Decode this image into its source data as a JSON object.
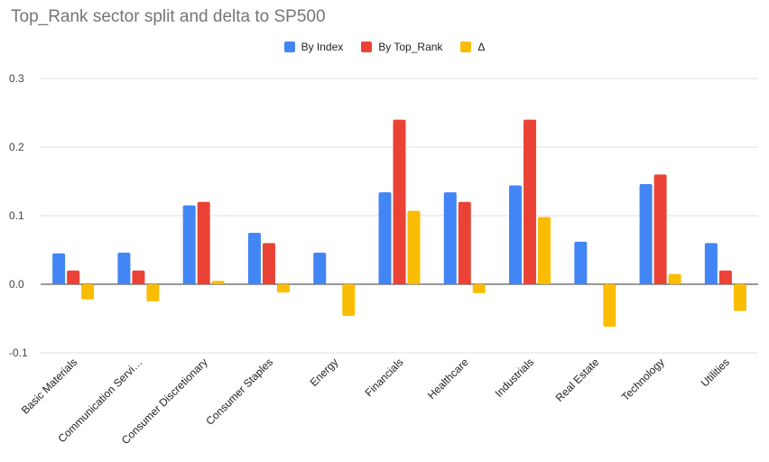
{
  "chart_data": {
    "type": "bar",
    "title": "Top_Rank sector split and delta to SP500",
    "xlabel": "",
    "ylabel": "",
    "ylim": [
      -0.1,
      0.3
    ],
    "yticks": [
      "0.3",
      "0.2",
      "0.1",
      "0.0",
      "-0.1"
    ],
    "ytick_values": [
      0.3,
      0.2,
      0.1,
      0.0,
      -0.1
    ],
    "grid": true,
    "legend_position": "top-center",
    "categories": [
      "Basic Materials",
      "Communication Servi…",
      "Consumer Discretionary",
      "Consumer Staples",
      "Energy",
      "Financials",
      "Healthcare",
      "Industrials",
      "Real Estate",
      "Technology",
      "Utilities"
    ],
    "series": [
      {
        "name": "By Index",
        "color": "#4285f4",
        "values": [
          0.045,
          0.046,
          0.115,
          0.075,
          0.046,
          0.134,
          0.134,
          0.144,
          0.062,
          0.146,
          0.06
        ]
      },
      {
        "name": "By Top_Rank",
        "color": "#ea4335",
        "values": [
          0.02,
          0.02,
          0.12,
          0.06,
          0.0,
          0.24,
          0.12,
          0.24,
          0.0,
          0.16,
          0.02
        ]
      },
      {
        "name": "Δ",
        "color": "#fbbc04",
        "values": [
          -0.022,
          -0.025,
          0.005,
          -0.012,
          -0.046,
          0.107,
          -0.013,
          0.098,
          -0.062,
          0.015,
          -0.039
        ]
      }
    ]
  }
}
